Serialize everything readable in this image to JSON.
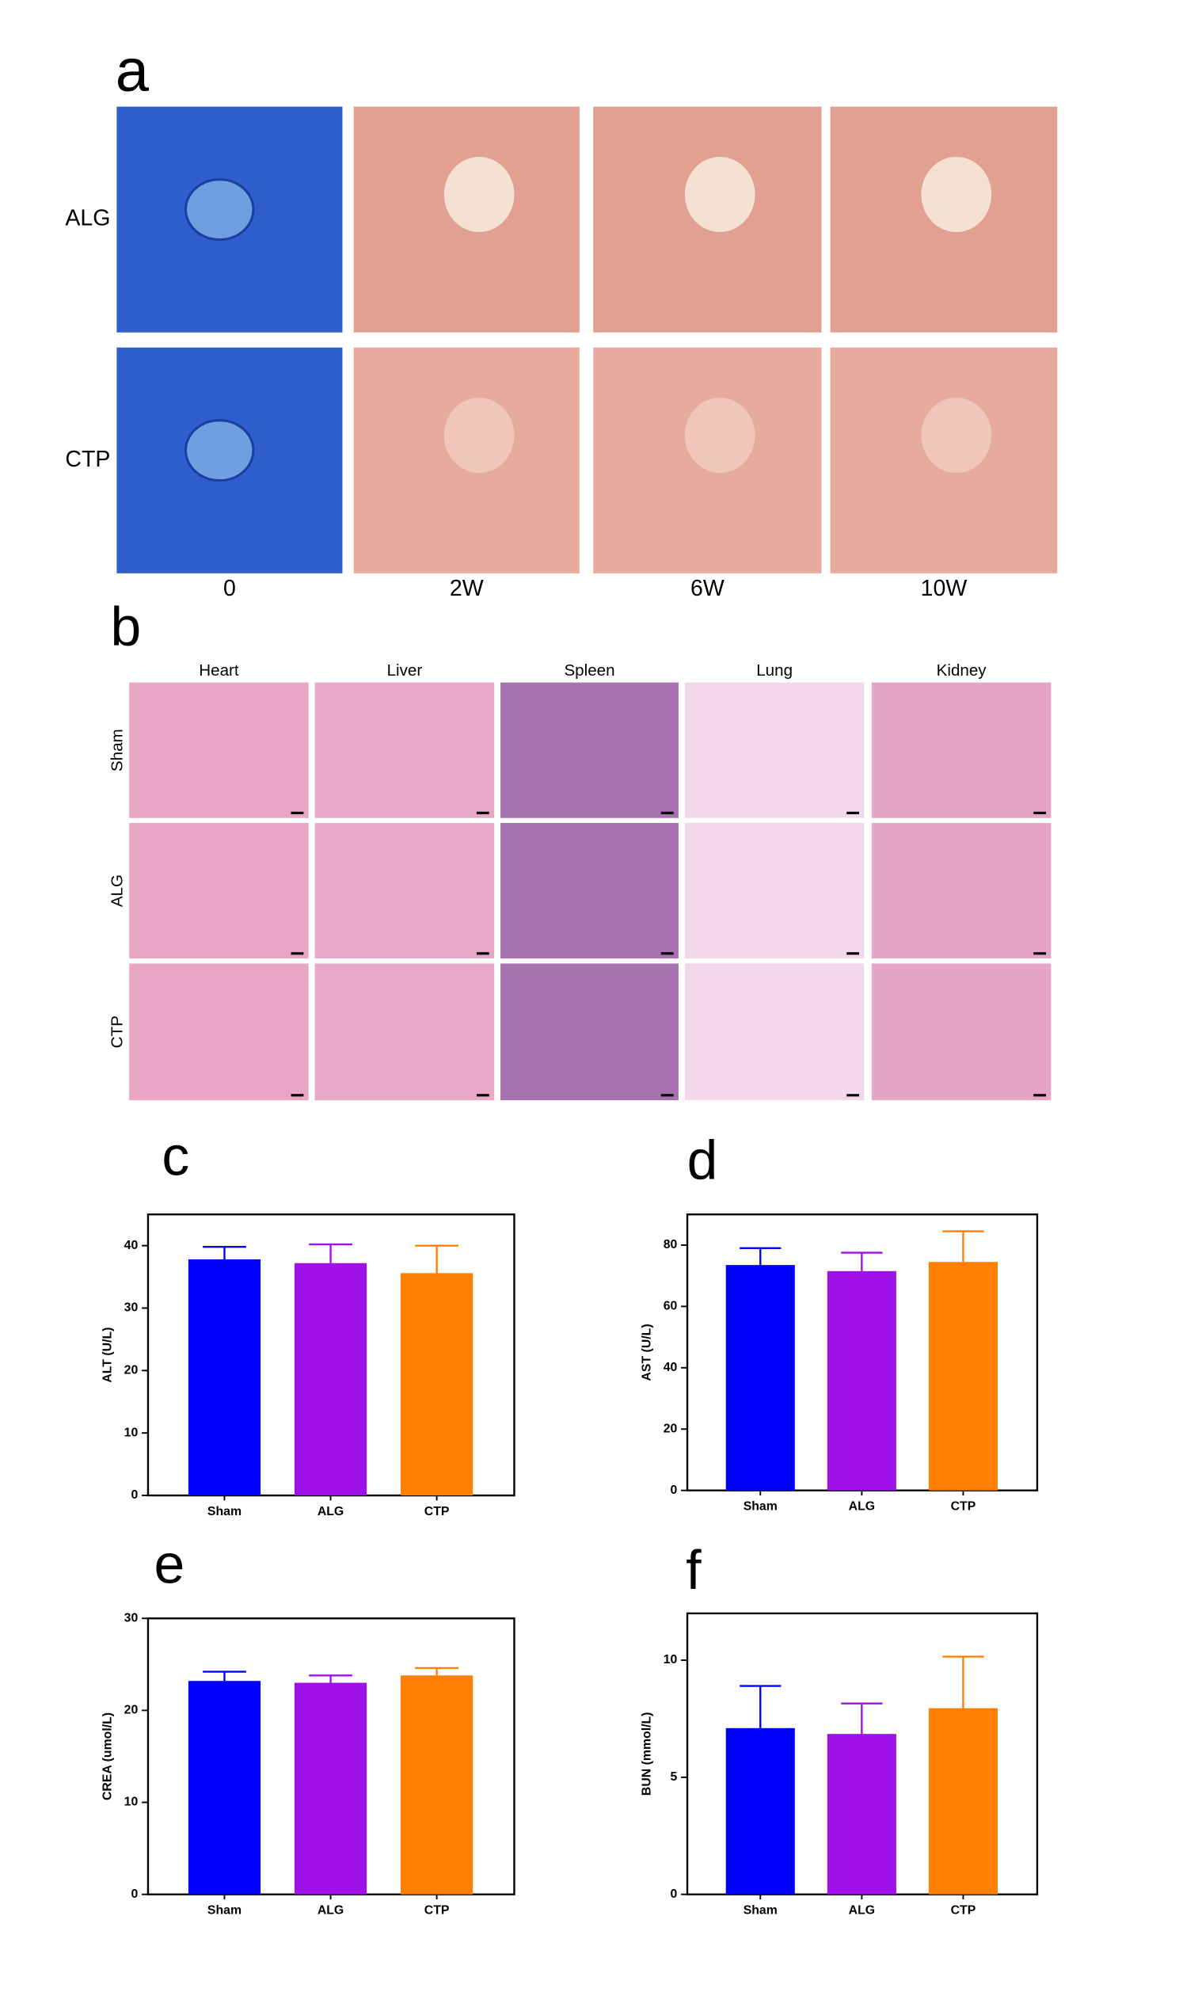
{
  "figure": {
    "a": {
      "letter": "a",
      "rows": [
        "ALG",
        "CTP"
      ],
      "columns": [
        "0",
        "2W",
        "6W",
        "10W"
      ]
    },
    "b": {
      "letter": "b",
      "rows": [
        "Sham",
        "ALG",
        "CTP"
      ],
      "columns": [
        "Heart",
        "Liver",
        "Spleen",
        "Lung",
        "Kidney"
      ]
    }
  },
  "chart_data": [
    {
      "type": "bar",
      "panel": "c",
      "ylabel": "ALT (U/L)",
      "categories": [
        "Sham",
        "ALG",
        "CTP"
      ],
      "values": [
        37.8,
        37.2,
        35.6
      ],
      "errors": [
        2.0,
        3.0,
        4.4
      ],
      "colors": [
        "#0000ff",
        "#a010e8",
        "#ff8000"
      ],
      "ylim": [
        0,
        45
      ],
      "yticks": [
        0,
        10,
        20,
        30,
        40
      ]
    },
    {
      "type": "bar",
      "panel": "d",
      "ylabel": "AST (U/L)",
      "categories": [
        "Sham",
        "ALG",
        "CTP"
      ],
      "values": [
        73.5,
        71.5,
        74.5
      ],
      "errors": [
        5.5,
        6.0,
        10.0
      ],
      "colors": [
        "#0000ff",
        "#a010e8",
        "#ff8000"
      ],
      "ylim": [
        0,
        90
      ],
      "yticks": [
        0,
        20,
        40,
        60,
        80
      ]
    },
    {
      "type": "bar",
      "panel": "e",
      "ylabel": "CREA (umol/L)",
      "categories": [
        "Sham",
        "ALG",
        "CTP"
      ],
      "values": [
        23.2,
        23.0,
        23.8
      ],
      "errors": [
        1.0,
        0.8,
        0.8
      ],
      "colors": [
        "#0000ff",
        "#a010e8",
        "#ff8000"
      ],
      "ylim": [
        0,
        30
      ],
      "yticks": [
        0,
        10,
        20,
        30
      ]
    },
    {
      "type": "bar",
      "panel": "f",
      "ylabel": "BUN (mmol/L)",
      "categories": [
        "Sham",
        "ALG",
        "CTP"
      ],
      "values": [
        7.1,
        6.85,
        7.95
      ],
      "errors": [
        1.8,
        1.3,
        2.2
      ],
      "colors": [
        "#0000ff",
        "#a010e8",
        "#ff8000"
      ],
      "ylim": [
        0,
        12
      ],
      "yticks": [
        0,
        5,
        10
      ]
    }
  ]
}
